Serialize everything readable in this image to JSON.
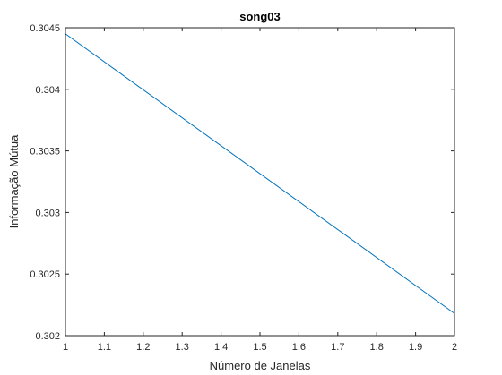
{
  "chart_data": {
    "type": "line",
    "title": "song03",
    "xlabel": "Número de Janelas",
    "ylabel": "Informação Mútua",
    "xlim": [
      1,
      2
    ],
    "ylim": [
      0.302,
      0.3045
    ],
    "x_ticks": [
      "1",
      "1.1",
      "1.2",
      "1.3",
      "1.4",
      "1.5",
      "1.6",
      "1.7",
      "1.8",
      "1.9",
      "2"
    ],
    "y_ticks": [
      "0.302",
      "0.3025",
      "0.303",
      "0.3035",
      "0.304",
      "0.3045"
    ],
    "grid": false,
    "series": [
      {
        "x": [
          1,
          2
        ],
        "y": [
          0.30445,
          0.30218
        ],
        "color": "#0072BD"
      }
    ]
  }
}
